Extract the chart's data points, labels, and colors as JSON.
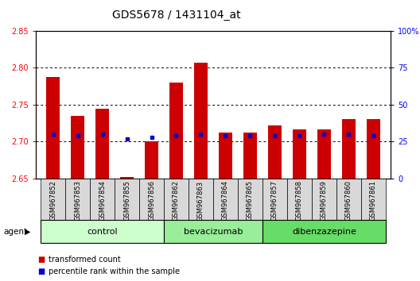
{
  "title": "GDS5678 / 1431104_at",
  "samples": [
    "GSM967852",
    "GSM967853",
    "GSM967854",
    "GSM967855",
    "GSM967856",
    "GSM967862",
    "GSM967863",
    "GSM967864",
    "GSM967865",
    "GSM967857",
    "GSM967858",
    "GSM967859",
    "GSM967860",
    "GSM967861"
  ],
  "transformed_count": [
    2.787,
    2.735,
    2.745,
    2.652,
    2.7,
    2.78,
    2.807,
    2.712,
    2.712,
    2.722,
    2.716,
    2.717,
    2.73,
    2.73
  ],
  "percentile_rank": [
    30,
    29,
    30,
    27,
    28,
    29,
    30,
    29,
    29,
    29,
    29,
    30,
    30,
    29
  ],
  "ylim": [
    2.65,
    2.85
  ],
  "y2lim": [
    0,
    100
  ],
  "y_ticks": [
    2.65,
    2.7,
    2.75,
    2.8,
    2.85
  ],
  "y2_ticks": [
    0,
    25,
    50,
    75,
    100
  ],
  "y2_tick_labels": [
    "0",
    "25",
    "50",
    "75",
    "100%"
  ],
  "bar_color": "#cc0000",
  "percentile_color": "#0000cc",
  "groups": [
    {
      "name": "control",
      "start": 0,
      "end": 5,
      "color": "#ccffcc"
    },
    {
      "name": "bevacizumab",
      "start": 5,
      "end": 9,
      "color": "#99ee99"
    },
    {
      "name": "dibenzazepine",
      "start": 9,
      "end": 14,
      "color": "#66dd66"
    }
  ],
  "agent_label": "agent",
  "legend_items": [
    {
      "label": "transformed count",
      "color": "#cc0000"
    },
    {
      "label": "percentile rank within the sample",
      "color": "#0000cc"
    }
  ],
  "bar_width": 0.55,
  "title_fontsize": 10,
  "tick_fontsize": 7,
  "label_fontsize": 7,
  "sample_fontsize": 6,
  "group_fontsize": 8
}
